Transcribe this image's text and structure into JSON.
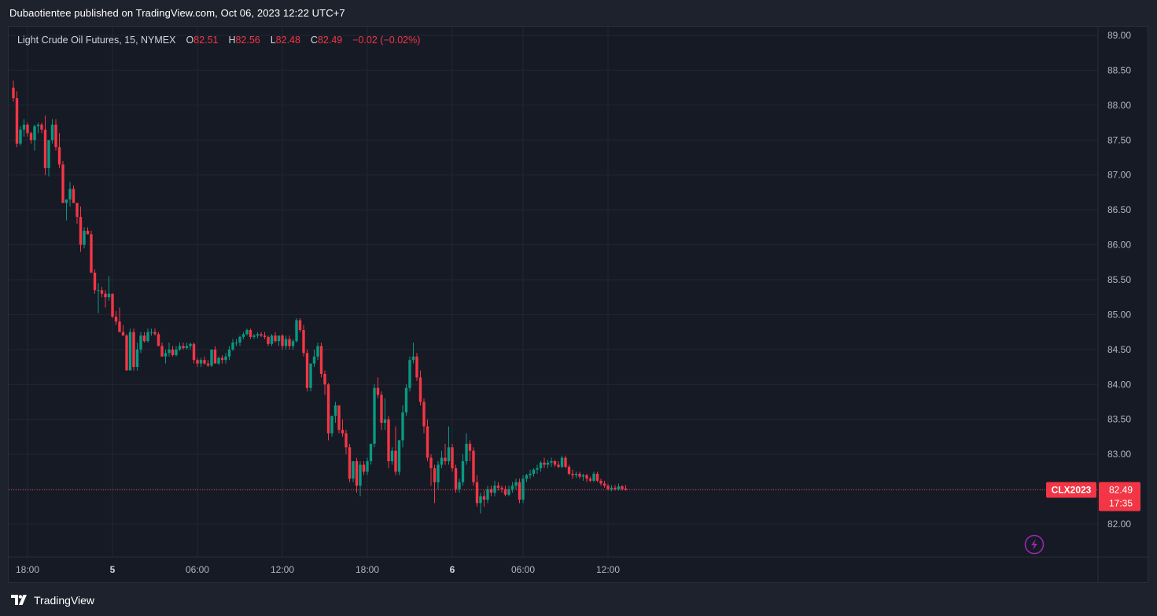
{
  "header": {
    "publisher_line": "Dubaotientee published on TradingView.com, Oct 06, 2023 12:22 UTC+7"
  },
  "legend": {
    "instrument": "Light Crude Oil Futures, 15, NYMEX",
    "open_key": "O",
    "open": "82.51",
    "high_key": "H",
    "high": "82.56",
    "low_key": "L",
    "low": "82.48",
    "close_key": "C",
    "close": "82.49",
    "change": "−0.02 (−0.02%)"
  },
  "price_tag": {
    "symbol": "CLX2023",
    "price": "82.49",
    "countdown": "17:35"
  },
  "footer": {
    "brand": "TradingView"
  },
  "colors": {
    "up": "#089981",
    "down": "#f23645",
    "background": "#161a25",
    "grid": "#232632",
    "price_line": "#f23645",
    "lightning": "#9c27b0"
  },
  "icons": {
    "lightning": "lightning-icon",
    "logo": "tradingview-logo-icon"
  },
  "chart_data": {
    "type": "candlestick",
    "title": "Light Crude Oil Futures, 15, NYMEX",
    "interval": "15",
    "ylim": [
      81.6,
      89.1
    ],
    "y_ticks": [
      "89.00",
      "88.50",
      "88.00",
      "87.50",
      "87.00",
      "86.50",
      "86.00",
      "85.50",
      "85.00",
      "84.50",
      "84.00",
      "83.50",
      "83.00",
      "82.50",
      "82.00"
    ],
    "x_ticks": [
      {
        "label": "18:00",
        "bar": 4,
        "bold": false
      },
      {
        "label": "5",
        "bar": 28,
        "bold": true
      },
      {
        "label": "06:00",
        "bar": 52,
        "bold": false
      },
      {
        "label": "12:00",
        "bar": 76,
        "bold": false
      },
      {
        "label": "18:00",
        "bar": 100,
        "bold": false
      },
      {
        "label": "6",
        "bar": 124,
        "bold": true
      },
      {
        "label": "06:00",
        "bar": 144,
        "bold": false
      },
      {
        "label": "12:00",
        "bar": 168,
        "bold": false
      }
    ],
    "last_price": 82.49,
    "ohlc": [
      [
        88.25,
        88.35,
        88.05,
        88.1
      ],
      [
        88.1,
        88.2,
        87.4,
        87.45
      ],
      [
        87.45,
        87.7,
        87.42,
        87.65
      ],
      [
        87.65,
        87.8,
        87.55,
        87.72
      ],
      [
        87.72,
        87.75,
        87.55,
        87.6
      ],
      [
        87.6,
        87.62,
        87.45,
        87.5
      ],
      [
        87.5,
        87.72,
        87.35,
        87.7
      ],
      [
        87.7,
        87.75,
        87.6,
        87.72
      ],
      [
        87.72,
        87.75,
        87.6,
        87.65
      ],
      [
        87.65,
        87.85,
        87.0,
        87.1
      ],
      [
        87.1,
        87.5,
        86.98,
        87.5
      ],
      [
        87.5,
        87.8,
        87.45,
        87.72
      ],
      [
        87.72,
        87.8,
        87.35,
        87.4
      ],
      [
        87.4,
        87.6,
        87.1,
        87.15
      ],
      [
        87.15,
        87.2,
        86.6,
        86.6
      ],
      [
        86.6,
        86.65,
        86.35,
        86.65
      ],
      [
        86.65,
        86.9,
        86.55,
        86.8
      ],
      [
        86.8,
        86.85,
        86.6,
        86.6
      ],
      [
        86.6,
        86.6,
        86.3,
        86.4
      ],
      [
        86.4,
        86.55,
        85.9,
        86.0
      ],
      [
        86.0,
        86.25,
        85.95,
        86.2
      ],
      [
        86.2,
        86.25,
        86.15,
        86.15
      ],
      [
        86.15,
        86.2,
        85.6,
        85.6
      ],
      [
        85.6,
        85.65,
        85.3,
        85.35
      ],
      [
        85.35,
        85.45,
        85.02,
        85.35
      ],
      [
        85.35,
        85.4,
        85.25,
        85.3
      ],
      [
        85.3,
        85.35,
        85.1,
        85.25
      ],
      [
        85.25,
        85.55,
        85.2,
        85.3
      ],
      [
        85.3,
        85.3,
        84.95,
        84.97
      ],
      [
        84.97,
        85.05,
        84.85,
        84.9
      ],
      [
        84.9,
        85.1,
        84.75,
        84.75
      ],
      [
        84.75,
        84.85,
        84.7,
        84.7
      ],
      [
        84.7,
        84.72,
        84.2,
        84.2
      ],
      [
        84.2,
        84.8,
        84.2,
        84.75
      ],
      [
        84.75,
        84.8,
        84.2,
        84.25
      ],
      [
        84.25,
        84.6,
        84.2,
        84.5
      ],
      [
        84.5,
        84.75,
        84.45,
        84.7
      ],
      [
        84.7,
        84.75,
        84.6,
        84.62
      ],
      [
        84.62,
        84.8,
        84.6,
        84.75
      ],
      [
        84.75,
        84.8,
        84.7,
        84.75
      ],
      [
        84.75,
        84.8,
        84.7,
        84.72
      ],
      [
        84.72,
        84.75,
        84.55,
        84.55
      ],
      [
        84.55,
        84.6,
        84.4,
        84.4
      ],
      [
        84.4,
        84.5,
        84.3,
        84.45
      ],
      [
        84.45,
        84.6,
        84.4,
        84.5
      ],
      [
        84.5,
        84.55,
        84.4,
        84.42
      ],
      [
        84.42,
        84.55,
        84.4,
        84.5
      ],
      [
        84.5,
        84.6,
        84.48,
        84.55
      ],
      [
        84.55,
        84.6,
        84.5,
        84.52
      ],
      [
        84.52,
        84.6,
        84.5,
        84.55
      ],
      [
        84.55,
        84.6,
        84.5,
        84.58
      ],
      [
        84.58,
        84.6,
        84.3,
        84.35
      ],
      [
        84.35,
        84.38,
        84.25,
        84.3
      ],
      [
        84.3,
        84.38,
        84.25,
        84.35
      ],
      [
        84.35,
        84.4,
        84.28,
        84.3
      ],
      [
        84.3,
        84.35,
        84.25,
        84.27
      ],
      [
        84.27,
        84.5,
        84.25,
        84.5
      ],
      [
        84.5,
        84.55,
        84.3,
        84.3
      ],
      [
        84.3,
        84.4,
        84.28,
        84.38
      ],
      [
        84.38,
        84.42,
        84.3,
        84.35
      ],
      [
        84.35,
        84.45,
        84.3,
        84.4
      ],
      [
        84.4,
        84.55,
        84.35,
        84.5
      ],
      [
        84.5,
        84.65,
        84.48,
        84.6
      ],
      [
        84.6,
        84.65,
        84.55,
        84.6
      ],
      [
        84.6,
        84.7,
        84.55,
        84.68
      ],
      [
        84.68,
        84.75,
        84.65,
        84.72
      ],
      [
        84.72,
        84.8,
        84.7,
        84.78
      ],
      [
        84.78,
        84.8,
        84.65,
        84.68
      ],
      [
        84.68,
        84.72,
        84.65,
        84.7
      ],
      [
        84.7,
        84.75,
        84.66,
        84.72
      ],
      [
        84.72,
        84.75,
        84.68,
        84.7
      ],
      [
        84.7,
        84.75,
        84.65,
        84.68
      ],
      [
        84.68,
        84.7,
        84.55,
        84.58
      ],
      [
        84.58,
        84.72,
        84.55,
        84.7
      ],
      [
        84.7,
        84.75,
        84.6,
        84.62
      ],
      [
        84.62,
        84.7,
        84.55,
        84.7
      ],
      [
        84.7,
        84.72,
        84.5,
        84.55
      ],
      [
        84.55,
        84.7,
        84.5,
        84.65
      ],
      [
        84.65,
        84.7,
        84.5,
        84.55
      ],
      [
        84.55,
        84.65,
        84.5,
        84.62
      ],
      [
        84.62,
        84.95,
        84.6,
        84.92
      ],
      [
        84.92,
        84.95,
        84.75,
        84.78
      ],
      [
        84.78,
        84.85,
        84.4,
        84.45
      ],
      [
        84.45,
        84.5,
        83.9,
        83.95
      ],
      [
        83.95,
        84.3,
        83.9,
        84.3
      ],
      [
        84.3,
        84.5,
        84.25,
        84.4
      ],
      [
        84.4,
        84.6,
        84.35,
        84.55
      ],
      [
        84.55,
        84.6,
        84.1,
        84.15
      ],
      [
        84.15,
        84.2,
        83.85,
        84.0
      ],
      [
        84.0,
        84.02,
        83.2,
        83.3
      ],
      [
        83.3,
        83.55,
        83.25,
        83.55
      ],
      [
        83.55,
        83.75,
        83.45,
        83.7
      ],
      [
        83.7,
        83.7,
        83.3,
        83.35
      ],
      [
        83.35,
        83.5,
        83.25,
        83.3
      ],
      [
        83.3,
        83.35,
        83.0,
        83.1
      ],
      [
        83.1,
        83.15,
        82.6,
        82.65
      ],
      [
        82.65,
        82.9,
        82.6,
        82.9
      ],
      [
        82.9,
        82.95,
        82.45,
        82.55
      ],
      [
        82.55,
        82.9,
        82.4,
        82.85
      ],
      [
        82.85,
        82.9,
        82.7,
        82.75
      ],
      [
        82.75,
        82.95,
        82.7,
        82.9
      ],
      [
        82.9,
        83.15,
        82.85,
        83.15
      ],
      [
        83.15,
        84.0,
        83.1,
        83.95
      ],
      [
        83.95,
        84.1,
        83.8,
        83.85
      ],
      [
        83.85,
        83.9,
        83.35,
        83.45
      ],
      [
        83.45,
        83.8,
        83.35,
        83.5
      ],
      [
        83.5,
        83.55,
        82.8,
        82.9
      ],
      [
        82.9,
        83.1,
        82.85,
        83.05
      ],
      [
        83.05,
        83.4,
        82.7,
        82.75
      ],
      [
        82.75,
        83.2,
        82.7,
        83.2
      ],
      [
        83.2,
        83.7,
        83.1,
        83.6
      ],
      [
        83.6,
        84.0,
        83.55,
        83.95
      ],
      [
        83.95,
        84.4,
        83.9,
        84.35
      ],
      [
        84.35,
        84.6,
        84.3,
        84.4
      ],
      [
        84.4,
        84.45,
        84.05,
        84.1
      ],
      [
        84.1,
        84.2,
        83.7,
        83.75
      ],
      [
        83.75,
        83.8,
        83.3,
        83.4
      ],
      [
        83.4,
        83.5,
        82.9,
        82.95
      ],
      [
        82.95,
        83.0,
        82.55,
        82.8
      ],
      [
        82.8,
        82.85,
        82.3,
        82.6
      ],
      [
        82.6,
        82.9,
        82.5,
        82.85
      ],
      [
        82.85,
        83.05,
        82.8,
        82.95
      ],
      [
        82.95,
        83.15,
        82.85,
        82.9
      ],
      [
        82.9,
        83.4,
        82.85,
        83.1
      ],
      [
        83.1,
        83.15,
        82.75,
        82.8
      ],
      [
        82.8,
        82.85,
        82.45,
        82.5
      ],
      [
        82.5,
        82.65,
        82.45,
        82.6
      ],
      [
        82.6,
        83.0,
        82.55,
        82.9
      ],
      [
        82.9,
        83.3,
        82.85,
        83.15
      ],
      [
        83.15,
        83.2,
        82.9,
        83.05
      ],
      [
        83.05,
        83.1,
        82.55,
        82.6
      ],
      [
        82.6,
        82.7,
        82.25,
        82.3
      ],
      [
        82.3,
        82.45,
        82.15,
        82.4
      ],
      [
        82.4,
        82.48,
        82.25,
        82.35
      ],
      [
        82.35,
        82.55,
        82.3,
        82.5
      ],
      [
        82.5,
        82.55,
        82.4,
        82.45
      ],
      [
        82.45,
        82.62,
        82.4,
        82.55
      ],
      [
        82.55,
        82.6,
        82.48,
        82.52
      ],
      [
        82.52,
        82.55,
        82.45,
        82.5
      ],
      [
        82.5,
        82.55,
        82.4,
        82.42
      ],
      [
        82.42,
        82.55,
        82.4,
        82.5
      ],
      [
        82.5,
        82.6,
        82.45,
        82.55
      ],
      [
        82.55,
        82.65,
        82.5,
        82.6
      ],
      [
        82.6,
        82.65,
        82.3,
        82.35
      ],
      [
        82.35,
        82.7,
        82.3,
        82.65
      ],
      [
        82.65,
        82.72,
        82.6,
        82.7
      ],
      [
        82.7,
        82.78,
        82.65,
        82.72
      ],
      [
        82.72,
        82.8,
        82.68,
        82.78
      ],
      [
        82.78,
        82.85,
        82.72,
        82.8
      ],
      [
        82.8,
        82.9,
        82.75,
        82.88
      ],
      [
        82.88,
        82.95,
        82.8,
        82.85
      ],
      [
        82.85,
        82.92,
        82.8,
        82.88
      ],
      [
        82.88,
        82.95,
        82.82,
        82.9
      ],
      [
        82.9,
        82.92,
        82.82,
        82.85
      ],
      [
        82.85,
        82.9,
        82.8,
        82.82
      ],
      [
        82.82,
        82.98,
        82.8,
        82.95
      ],
      [
        82.95,
        82.98,
        82.8,
        82.82
      ],
      [
        82.82,
        82.85,
        82.7,
        82.72
      ],
      [
        82.72,
        82.78,
        82.65,
        82.7
      ],
      [
        82.7,
        82.75,
        82.66,
        82.72
      ],
      [
        82.72,
        82.75,
        82.65,
        82.68
      ],
      [
        82.68,
        82.72,
        82.62,
        82.7
      ],
      [
        82.7,
        82.72,
        82.6,
        82.65
      ],
      [
        82.65,
        82.68,
        82.6,
        82.62
      ],
      [
        82.62,
        82.75,
        82.6,
        82.72
      ],
      [
        82.72,
        82.75,
        82.6,
        82.62
      ],
      [
        82.62,
        82.65,
        82.55,
        82.58
      ],
      [
        82.58,
        82.62,
        82.52,
        82.55
      ],
      [
        82.55,
        82.58,
        82.48,
        82.5
      ],
      [
        82.5,
        82.56,
        82.47,
        82.52
      ],
      [
        82.52,
        82.56,
        82.48,
        82.5
      ],
      [
        82.5,
        82.58,
        82.48,
        82.54
      ],
      [
        82.54,
        82.56,
        82.48,
        82.5
      ],
      [
        82.51,
        82.56,
        82.48,
        82.49
      ]
    ]
  }
}
